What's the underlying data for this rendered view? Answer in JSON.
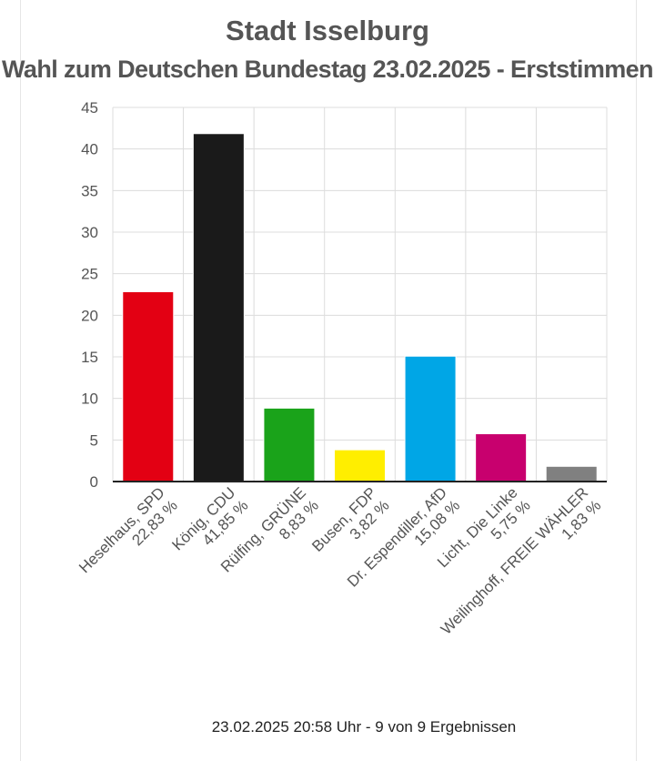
{
  "chart_data": {
    "type": "bar",
    "title": "Stadt Isselburg",
    "subtitle": "Wahl zum Deutschen Bundestag 23.02.2025  - Erststimmen",
    "categories": [
      [
        "Heselhaus, SPD",
        "22,83 %"
      ],
      [
        "König, CDU",
        "41,85 %"
      ],
      [
        "Rülfing, GRÜNE",
        "8,83 %"
      ],
      [
        "Busen, FDP",
        "3,82 %"
      ],
      [
        "Dr. Espendiller, AfD",
        "15,08 %"
      ],
      [
        "Licht, Die Linke",
        "5,75 %"
      ],
      [
        "Weilinghoff, FREIE WÄHLER",
        "1,83 %"
      ]
    ],
    "values": [
      22.83,
      41.85,
      8.83,
      3.82,
      15.08,
      5.75,
      1.83
    ],
    "colors": [
      "#e30013",
      "#1a1a1a",
      "#1aa31a",
      "#ffee00",
      "#00a6e6",
      "#c8006e",
      "#808080"
    ],
    "ylim": [
      0,
      45
    ],
    "yticks": [
      0,
      5,
      10,
      15,
      20,
      25,
      30,
      35,
      40,
      45
    ],
    "grid": true
  },
  "footer": "23.02.2025 20:58 Uhr - 9 von 9 Ergebnissen"
}
